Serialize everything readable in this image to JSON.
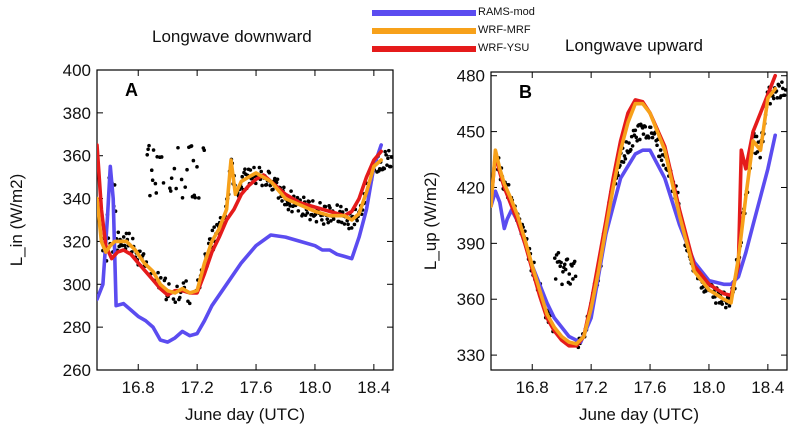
{
  "colors": {
    "RAMS-mod": "#5b4cf0",
    "WRF-MRF": "#f7a11a",
    "WRF-YSU": "#e51b1b",
    "obs": "#000000"
  },
  "legend": [
    {
      "name": "RAMS-mod",
      "color": "#5b4cf0"
    },
    {
      "name": "WRF-MRF",
      "color": "#f7a11a"
    },
    {
      "name": "WRF-YSU",
      "color": "#e51b1b"
    }
  ],
  "chart_data": [
    {
      "type": "line",
      "panel_label": "A",
      "title": "Longwave downward",
      "xlabel": "June day (UTC)",
      "ylabel": "L_in (W/m2)",
      "xlim": [
        16.52,
        18.53
      ],
      "ylim": [
        260,
        400
      ],
      "xticks": [
        "16.8",
        "17.2",
        "17.6",
        "18.0",
        "18.4"
      ],
      "yticks": [
        "260",
        "280",
        "300",
        "320",
        "340",
        "360",
        "380",
        "400"
      ],
      "grid": false,
      "series": [
        {
          "name": "RAMS-mod",
          "color": "#5b4cf0",
          "x": [
            16.52,
            16.56,
            16.59,
            16.61,
            16.63,
            16.65,
            16.7,
            16.75,
            16.8,
            16.85,
            16.9,
            16.95,
            17.0,
            17.05,
            17.1,
            17.15,
            17.2,
            17.25,
            17.3,
            17.4,
            17.5,
            17.6,
            17.7,
            17.8,
            17.9,
            18.0,
            18.05,
            18.1,
            18.15,
            18.2,
            18.25,
            18.3,
            18.35,
            18.4,
            18.45
          ],
          "y": [
            293,
            300,
            330,
            355,
            340,
            290,
            291,
            288,
            285,
            283,
            280,
            274,
            273,
            275,
            278,
            276,
            277,
            283,
            290,
            300,
            310,
            318,
            323,
            322,
            320,
            318,
            316,
            316,
            314,
            313,
            312,
            322,
            335,
            355,
            365
          ]
        },
        {
          "name": "WRF-MRF",
          "color": "#f7a11a",
          "x": [
            16.52,
            16.55,
            16.58,
            16.61,
            16.64,
            16.68,
            16.72,
            16.78,
            16.84,
            16.9,
            16.95,
            17.0,
            17.05,
            17.1,
            17.15,
            17.2,
            17.25,
            17.3,
            17.35,
            17.4,
            17.43,
            17.46,
            17.5,
            17.55,
            17.6,
            17.7,
            17.8,
            17.9,
            18.0,
            18.1,
            18.2,
            18.25,
            18.3,
            18.35,
            18.4,
            18.45
          ],
          "y": [
            340,
            320,
            315,
            318,
            320,
            320,
            320,
            316,
            310,
            306,
            300,
            297,
            296,
            298,
            296,
            297,
            310,
            320,
            326,
            335,
            358,
            342,
            348,
            350,
            352,
            348,
            340,
            337,
            334,
            332,
            332,
            330,
            333,
            343,
            355,
            358
          ]
        },
        {
          "name": "WRF-YSU",
          "color": "#e51b1b",
          "x": [
            16.52,
            16.55,
            16.58,
            16.62,
            16.66,
            16.7,
            16.75,
            16.8,
            16.85,
            16.9,
            16.95,
            17.0,
            17.05,
            17.1,
            17.15,
            17.2,
            17.25,
            17.3,
            17.35,
            17.4,
            17.45,
            17.5,
            17.55,
            17.6,
            17.65,
            17.7,
            17.8,
            17.9,
            18.0,
            18.1,
            18.2,
            18.25,
            18.3,
            18.35,
            18.4,
            18.45
          ],
          "y": [
            365,
            335,
            318,
            312,
            315,
            316,
            314,
            310,
            306,
            302,
            298,
            295,
            297,
            297,
            296,
            296,
            305,
            315,
            322,
            330,
            335,
            342,
            346,
            349,
            351,
            348,
            342,
            338,
            336,
            334,
            332,
            334,
            340,
            350,
            358,
            362
          ]
        }
      ]
    },
    {
      "type": "line",
      "panel_label": "B",
      "title": "Longwave upward",
      "xlabel": "June day (UTC)",
      "ylabel": "L_up (W/m2)",
      "xlim": [
        16.52,
        18.53
      ],
      "ylim": [
        322,
        482
      ],
      "xticks": [
        "16.8",
        "17.2",
        "17.6",
        "18.0",
        "18.4"
      ],
      "yticks": [
        "330",
        "360",
        "390",
        "420",
        "450",
        "480"
      ],
      "grid": false,
      "series": [
        {
          "name": "RAMS-mod",
          "color": "#5b4cf0",
          "x": [
            16.52,
            16.55,
            16.58,
            16.61,
            16.63,
            16.66,
            16.7,
            16.75,
            16.8,
            16.85,
            16.9,
            16.95,
            17.0,
            17.05,
            17.1,
            17.13,
            17.2,
            17.3,
            17.4,
            17.5,
            17.55,
            17.6,
            17.7,
            17.8,
            17.9,
            18.0,
            18.1,
            18.15,
            18.2,
            18.25,
            18.3,
            18.35,
            18.4,
            18.45
          ],
          "y": [
            410,
            418,
            412,
            398,
            403,
            408,
            402,
            390,
            378,
            368,
            358,
            350,
            345,
            340,
            338,
            337,
            350,
            395,
            425,
            438,
            440,
            440,
            425,
            400,
            380,
            370,
            368,
            368,
            372,
            385,
            400,
            415,
            430,
            448
          ]
        },
        {
          "name": "WRF-MRF",
          "color": "#f7a11a",
          "x": [
            16.52,
            16.55,
            16.58,
            16.61,
            16.65,
            16.7,
            16.75,
            16.8,
            16.85,
            16.9,
            16.95,
            17.0,
            17.05,
            17.1,
            17.15,
            17.2,
            17.25,
            17.3,
            17.35,
            17.4,
            17.45,
            17.5,
            17.55,
            17.6,
            17.7,
            17.8,
            17.9,
            18.0,
            18.1,
            18.15,
            18.2,
            18.25,
            18.3,
            18.35,
            18.4,
            18.45
          ],
          "y": [
            410,
            440,
            430,
            422,
            415,
            405,
            392,
            378,
            365,
            352,
            345,
            340,
            337,
            336,
            340,
            355,
            375,
            398,
            420,
            440,
            455,
            465,
            465,
            460,
            440,
            405,
            375,
            365,
            360,
            358,
            382,
            415,
            445,
            440,
            468,
            473
          ]
        },
        {
          "name": "WRF-YSU",
          "color": "#e51b1b",
          "x": [
            16.52,
            16.55,
            16.58,
            16.61,
            16.65,
            16.7,
            16.75,
            16.8,
            16.85,
            16.9,
            16.95,
            17.0,
            17.05,
            17.1,
            17.15,
            17.2,
            17.25,
            17.3,
            17.35,
            17.4,
            17.45,
            17.5,
            17.55,
            17.6,
            17.7,
            17.8,
            17.9,
            18.0,
            18.1,
            18.15,
            18.2,
            18.22,
            18.25,
            18.3,
            18.35,
            18.4,
            18.45
          ],
          "y": [
            412,
            438,
            428,
            420,
            412,
            402,
            390,
            376,
            362,
            350,
            343,
            338,
            335,
            335,
            340,
            358,
            380,
            402,
            425,
            445,
            460,
            467,
            466,
            460,
            442,
            408,
            378,
            368,
            363,
            362,
            378,
            440,
            430,
            450,
            460,
            470,
            480
          ]
        }
      ]
    }
  ]
}
